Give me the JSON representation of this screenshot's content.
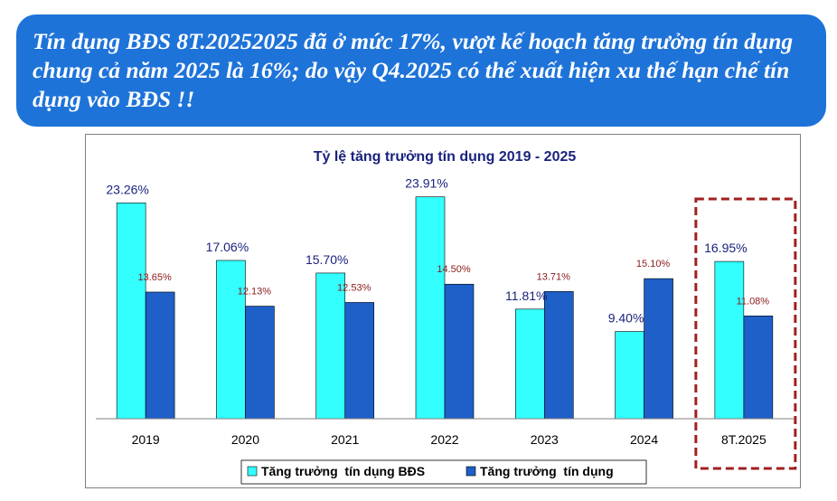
{
  "headline": "Tín dụng BĐS 8T.20252025 đã ở mức 17%, vượt kế hoạch tăng trưởng tín dụng chung cả năm 2025 là 16%; do vậy Q4.2025 có thể xuất hiện xu thế hạn chế tín dụng vào BĐS !!",
  "colors": {
    "banner": "#1e73d8",
    "series_real_estate": "#33ffff",
    "series_total": "#1e5fc8",
    "highlight_box": "#a02020",
    "label_real_estate": "#1a237e",
    "label_total": "#8b1a1a"
  },
  "chart_data": {
    "type": "bar",
    "title": "Tỷ lệ tăng trưởng tín dụng 2019 - 2025",
    "xlabel": "",
    "ylabel": "",
    "ylim": [
      0,
      27
    ],
    "grid": false,
    "legend_position": "bottom",
    "categories": [
      "2019",
      "2020",
      "2021",
      "2022",
      "2023",
      "2024",
      "8T.2025"
    ],
    "series": [
      {
        "name": "Tăng trưởng  tín dụng BĐS",
        "values": [
          23.26,
          17.06,
          15.7,
          23.91,
          11.81,
          9.4,
          16.95
        ],
        "labels": [
          "23.26%",
          "17.06%",
          "15.70%",
          "23.91%",
          "11.81%",
          "9.40%",
          "16.95%"
        ]
      },
      {
        "name": "Tăng trưởng  tín dụng",
        "values": [
          13.65,
          12.13,
          12.53,
          14.5,
          13.71,
          15.1,
          11.08
        ],
        "labels": [
          "13.65%",
          "12.13%",
          "12.53%",
          "14.50%",
          "13.71%",
          "15.10%",
          "11.08%"
        ]
      }
    ],
    "highlighted_category": "8T.2025"
  }
}
